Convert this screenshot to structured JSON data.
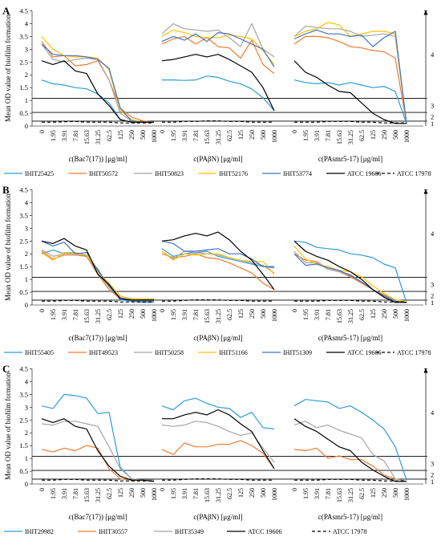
{
  "x_ticks": [
    "0",
    "1.95",
    "3.91",
    "7.81",
    "15.63",
    "31.25",
    "62.5",
    "125",
    "250",
    "500",
    "1000"
  ],
  "y_ticks": [
    "0",
    "0.5",
    "1",
    "1.5",
    "2",
    "2.5",
    "3",
    "3.5",
    "4",
    "4.5"
  ],
  "ylabel": "Mean OD value of biofilm formation",
  "xlabels": [
    "c(Bac7(17)) [μg/ml]",
    "c(PAβN) [μg/ml]",
    "c(PAsmr5-17) [μg/ml]"
  ],
  "category_labels": [
    "1",
    "2",
    "3",
    "4"
  ],
  "category_cutoffs": [
    0.19,
    0.53,
    1.08
  ],
  "colors": {
    "blue_light": "#2e9bd6",
    "orange": "#ed7d31",
    "gray": "#a5a5a5",
    "yellow": "#ffc000",
    "blue_dark": "#4472c4",
    "black": "#000000"
  },
  "chart_data": [
    {
      "panel": "A",
      "type": "line",
      "ylim": [
        0,
        4.5
      ],
      "series_names": [
        "IHIT25425",
        "IHIT50572",
        "IHIT50823",
        "IHIT52176",
        "IHIT53774",
        "ATCC 19606",
        "ATCC 17978"
      ],
      "series_colors": [
        "#2e9bd6",
        "#ed7d31",
        "#a5a5a5",
        "#ffc000",
        "#4472c4",
        "#000000",
        "#000000"
      ],
      "series_dashed": [
        false,
        false,
        false,
        false,
        false,
        false,
        true
      ],
      "subplots": [
        [
          [
            1.8,
            1.65,
            1.6,
            1.5,
            1.45,
            1.25,
            0.9,
            0.25,
            0.15,
            0.15,
            0.15
          ],
          [
            3.3,
            2.7,
            2.75,
            2.35,
            2.4,
            2.55,
            1.8,
            0.7,
            0.35,
            0.2,
            0.15
          ],
          [
            3.2,
            2.6,
            2.5,
            2.6,
            2.65,
            2.6,
            1.8,
            0.5,
            0.2,
            0.15,
            0.15
          ],
          [
            3.5,
            3.0,
            2.75,
            2.7,
            2.7,
            2.65,
            2.2,
            0.6,
            0.25,
            0.15,
            0.15
          ],
          [
            3.2,
            2.8,
            2.75,
            2.75,
            2.7,
            2.6,
            2.25,
            0.7,
            0.2,
            0.15,
            0.15
          ],
          [
            2.55,
            2.4,
            2.55,
            2.15,
            2.05,
            1.25,
            0.8,
            0.25,
            0.15,
            0.15,
            0.15
          ],
          [
            0.15,
            0.15,
            0.17,
            0.18,
            0.15,
            0.15,
            0.15,
            0.12,
            0.12,
            0.12,
            0.12
          ]
        ],
        [
          [
            1.8,
            1.8,
            1.78,
            1.8,
            1.95,
            1.9,
            1.75,
            1.65,
            1.45,
            1.1,
            0.6
          ],
          [
            3.2,
            3.4,
            3.5,
            3.2,
            3.45,
            3.1,
            3.05,
            2.65,
            3.35,
            2.4,
            2.05
          ],
          [
            3.6,
            4.0,
            3.8,
            3.75,
            3.7,
            3.75,
            3.45,
            3.1,
            4.0,
            3.0,
            2.7
          ],
          [
            3.5,
            3.75,
            3.65,
            3.5,
            3.45,
            3.45,
            3.55,
            3.5,
            3.4,
            2.95,
            2.4
          ],
          [
            3.3,
            3.5,
            3.35,
            3.6,
            3.3,
            3.65,
            3.6,
            3.4,
            3.2,
            3.0,
            2.3
          ],
          [
            2.55,
            2.6,
            2.7,
            2.8,
            2.7,
            2.8,
            2.6,
            2.35,
            2.1,
            1.5,
            0.6
          ],
          [
            0.15,
            0.15,
            0.18,
            0.18,
            0.2,
            0.2,
            0.18,
            0.18,
            0.15,
            0.15,
            0.15
          ]
        ],
        [
          [
            1.8,
            1.7,
            1.65,
            1.7,
            1.6,
            1.7,
            1.6,
            1.5,
            1.55,
            1.35,
            0.1
          ],
          [
            3.2,
            3.5,
            3.5,
            3.45,
            3.3,
            3.1,
            3.05,
            2.95,
            2.9,
            2.65,
            0.1
          ],
          [
            3.5,
            3.9,
            3.85,
            3.8,
            3.8,
            3.7,
            3.5,
            3.55,
            3.6,
            3.5,
            0.1
          ],
          [
            3.5,
            3.7,
            3.8,
            4.05,
            3.95,
            3.5,
            3.6,
            3.7,
            3.7,
            3.6,
            0.1
          ],
          [
            3.4,
            3.6,
            3.75,
            3.6,
            3.6,
            3.5,
            3.55,
            3.1,
            3.45,
            3.7,
            0.1
          ],
          [
            2.55,
            2.1,
            1.9,
            1.6,
            1.35,
            1.3,
            0.9,
            0.5,
            0.25,
            0.1,
            0.1
          ],
          [
            0.15,
            0.15,
            0.15,
            0.18,
            0.18,
            0.18,
            0.15,
            0.15,
            0.12,
            0.12,
            0.12
          ]
        ]
      ]
    },
    {
      "panel": "B",
      "type": "line",
      "ylim": [
        0,
        4.5
      ],
      "series_names": [
        "IHIT55405",
        "IHIT49523",
        "IHIT50258",
        "IHIT51166",
        "IHIT51309",
        "ATCC 19606",
        "ATCC 17978"
      ],
      "series_colors": [
        "#2e9bd6",
        "#ed7d31",
        "#a5a5a5",
        "#ffc000",
        "#4472c4",
        "#000000",
        "#000000"
      ],
      "series_dashed": [
        false,
        false,
        false,
        false,
        false,
        false,
        true
      ],
      "subplots": [
        [
          [
            2.0,
            2.15,
            2.0,
            2.05,
            1.9,
            1.4,
            0.7,
            0.2,
            0.15,
            0.1,
            0.1
          ],
          [
            2.1,
            1.8,
            1.95,
            1.95,
            1.9,
            1.2,
            0.6,
            0.25,
            0.2,
            0.15,
            0.15
          ],
          [
            2.15,
            1.9,
            2.0,
            2.0,
            1.95,
            1.25,
            0.7,
            0.3,
            0.2,
            0.2,
            0.2
          ],
          [
            2.05,
            1.75,
            2.05,
            2.05,
            1.95,
            1.3,
            0.85,
            0.35,
            0.25,
            0.25,
            0.25
          ],
          [
            2.5,
            2.3,
            2.45,
            2.0,
            2.05,
            1.35,
            0.75,
            0.25,
            0.15,
            0.15,
            0.15
          ],
          [
            2.5,
            2.4,
            2.6,
            2.3,
            2.15,
            1.2,
            0.8,
            0.25,
            0.2,
            0.2,
            0.2
          ],
          [
            0.15,
            0.15,
            0.18,
            0.18,
            0.15,
            0.15,
            0.15,
            0.12,
            0.12,
            0.12,
            0.12
          ]
        ],
        [
          [
            2.2,
            1.9,
            2.0,
            2.05,
            2.1,
            1.9,
            1.8,
            1.7,
            1.6,
            1.5,
            1.45
          ],
          [
            2.0,
            1.85,
            1.9,
            2.0,
            1.85,
            1.8,
            1.65,
            1.45,
            1.25,
            0.85,
            0.6
          ],
          [
            2.1,
            1.8,
            2.1,
            2.05,
            2.0,
            1.95,
            1.85,
            1.75,
            1.65,
            1.55,
            1.25
          ],
          [
            2.1,
            1.75,
            2.0,
            1.95,
            2.0,
            2.0,
            1.85,
            1.75,
            1.7,
            1.7,
            1.2
          ],
          [
            2.5,
            2.4,
            2.1,
            2.1,
            2.15,
            2.2,
            2.0,
            2.0,
            1.8,
            1.5,
            1.5
          ],
          [
            2.5,
            2.55,
            2.7,
            2.8,
            2.7,
            2.85,
            2.55,
            2.1,
            1.75,
            1.2,
            0.6
          ],
          [
            0.15,
            0.15,
            0.18,
            0.2,
            0.2,
            0.2,
            0.18,
            0.18,
            0.15,
            0.15,
            0.15
          ]
        ],
        [
          [
            2.5,
            2.45,
            2.25,
            2.2,
            2.15,
            2.0,
            1.95,
            1.85,
            1.6,
            1.45,
            0.1
          ],
          [
            2.0,
            1.75,
            1.7,
            1.4,
            1.3,
            1.1,
            0.85,
            0.6,
            0.4,
            0.2,
            0.1
          ],
          [
            2.1,
            1.65,
            1.65,
            1.4,
            1.3,
            1.2,
            0.9,
            0.6,
            0.35,
            0.2,
            0.1
          ],
          [
            2.3,
            1.8,
            1.6,
            1.5,
            1.35,
            1.3,
            1.1,
            0.75,
            0.45,
            0.2,
            0.15
          ],
          [
            2.0,
            1.55,
            1.6,
            1.45,
            1.35,
            1.15,
            0.9,
            0.6,
            0.35,
            0.15,
            0.1
          ],
          [
            2.5,
            2.1,
            1.9,
            1.75,
            1.5,
            1.3,
            1.0,
            0.6,
            0.3,
            0.1,
            0.1
          ],
          [
            0.15,
            0.15,
            0.15,
            0.18,
            0.18,
            0.18,
            0.15,
            0.15,
            0.12,
            0.12,
            0.12
          ]
        ]
      ]
    },
    {
      "panel": "C",
      "type": "line",
      "ylim": [
        0,
        4.5
      ],
      "series_names": [
        "IHIT29982",
        "IHIT30557",
        "IHIT35349",
        "ATCC 19606",
        "ATCC 17978"
      ],
      "series_colors": [
        "#2e9bd6",
        "#ed7d31",
        "#a5a5a5",
        "#000000",
        "#000000"
      ],
      "series_dashed": [
        false,
        false,
        false,
        false,
        true
      ],
      "subplots": [
        [
          [
            3.05,
            2.95,
            3.5,
            3.45,
            3.35,
            2.75,
            2.8,
            0.65,
            0.2,
            0.15,
            0.15
          ],
          [
            1.35,
            1.25,
            1.4,
            1.3,
            1.5,
            1.4,
            0.6,
            0.2,
            0.15,
            0.15,
            0.15
          ],
          [
            2.35,
            2.3,
            2.45,
            2.45,
            2.35,
            2.25,
            1.45,
            0.6,
            0.2,
            0.15,
            0.15
          ],
          [
            2.55,
            2.4,
            2.55,
            2.25,
            2.15,
            1.3,
            0.7,
            0.3,
            0.15,
            0.15,
            0.1
          ],
          [
            0.15,
            0.15,
            0.18,
            0.18,
            0.15,
            0.15,
            0.15,
            0.12,
            0.12,
            0.12,
            0.12
          ]
        ],
        [
          [
            3.05,
            2.9,
            3.25,
            3.35,
            3.15,
            3.0,
            2.95,
            2.6,
            2.8,
            2.2,
            2.15
          ],
          [
            1.35,
            1.15,
            1.6,
            1.45,
            1.45,
            1.55,
            1.55,
            1.7,
            1.5,
            1.2,
            0.6
          ],
          [
            2.3,
            2.25,
            2.3,
            2.45,
            2.4,
            2.25,
            2.05,
            1.9,
            2.0,
            1.4,
            0.85
          ],
          [
            2.55,
            2.55,
            2.7,
            2.8,
            2.7,
            2.9,
            2.7,
            2.35,
            2.05,
            1.3,
            0.6
          ],
          [
            0.15,
            0.15,
            0.18,
            0.2,
            0.2,
            0.2,
            0.18,
            0.18,
            0.15,
            0.15,
            0.15
          ]
        ],
        [
          [
            3.05,
            3.3,
            3.25,
            3.2,
            2.95,
            3.05,
            2.8,
            2.5,
            2.15,
            1.45,
            0.15
          ],
          [
            1.35,
            1.3,
            1.4,
            1.0,
            1.1,
            0.95,
            0.95,
            0.7,
            0.35,
            0.2,
            0.1
          ],
          [
            2.3,
            2.45,
            2.2,
            2.3,
            2.1,
            1.95,
            1.8,
            1.15,
            0.9,
            0.2,
            0.1
          ],
          [
            2.55,
            2.25,
            2.05,
            1.75,
            1.45,
            1.3,
            0.85,
            0.55,
            0.3,
            0.1,
            0.1
          ],
          [
            0.15,
            0.15,
            0.15,
            0.18,
            0.18,
            0.18,
            0.15,
            0.15,
            0.12,
            0.12,
            0.12
          ]
        ]
      ]
    }
  ]
}
